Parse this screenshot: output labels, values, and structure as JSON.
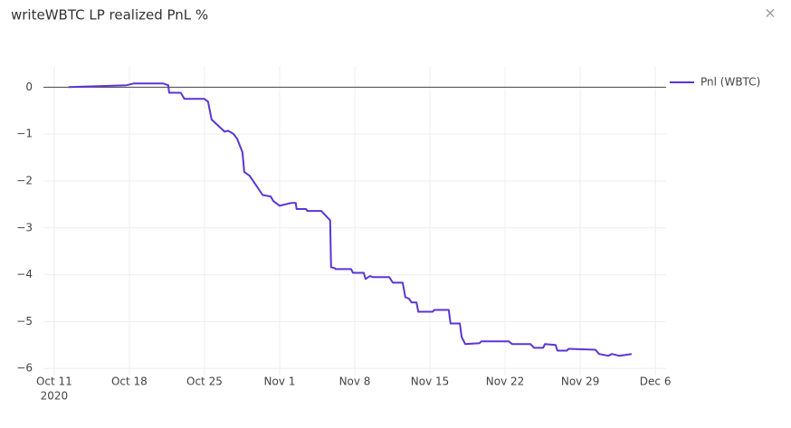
{
  "chart_data": {
    "type": "line",
    "title": "writeWBTC LP realized PnL %",
    "close_label": "×",
    "x": [
      "2020-10-12T08:00",
      "2020-10-17T18:00",
      "2020-10-18T10:00",
      "2020-10-21T03:00",
      "2020-10-21T15:00",
      "2020-10-21T17:00",
      "2020-10-22T19:00",
      "2020-10-23T03:00",
      "2020-10-25T00:00",
      "2020-10-25T08:00",
      "2020-10-25T16:00",
      "2020-10-26T21:00",
      "2020-10-27T05:00",
      "2020-10-27T17:00",
      "2020-10-28T01:00",
      "2020-10-28T13:00",
      "2020-10-28T17:00",
      "2020-10-29T05:00",
      "2020-10-30T10:00",
      "2020-10-31T04:00",
      "2020-10-31T10:00",
      "2020-11-01T00:00",
      "2020-11-02T02:00",
      "2020-11-02T12:00",
      "2020-11-02T14:00",
      "2020-11-03T11:00",
      "2020-11-03T14:00",
      "2020-11-04T21:00",
      "2020-11-05T11:00",
      "2020-11-05T17:00",
      "2020-11-05T19:00",
      "2020-11-06T03:00",
      "2020-11-06T05:00",
      "2020-11-07T16:00",
      "2020-11-07T20:00",
      "2020-11-08T20:00",
      "2020-11-09T00:00",
      "2020-11-09T10:00",
      "2020-11-09T16:00",
      "2020-11-11T05:00",
      "2020-11-11T13:00",
      "2020-11-12T11:00",
      "2020-11-12T17:00",
      "2020-11-13T01:00",
      "2020-11-13T07:00",
      "2020-11-13T18:00",
      "2020-11-13T22:00",
      "2020-11-15T06:00",
      "2020-11-15T10:00",
      "2020-11-16T18:00",
      "2020-11-16T22:00",
      "2020-11-17T19:00",
      "2020-11-17T23:00",
      "2020-11-18T07:00",
      "2020-11-19T15:00",
      "2020-11-19T19:00",
      "2020-11-22T08:00",
      "2020-11-22T16:00",
      "2020-11-24T09:00",
      "2020-11-24T17:00",
      "2020-11-25T13:00",
      "2020-11-25T17:00",
      "2020-11-26T17:00",
      "2020-11-26T21:00",
      "2020-11-27T18:00",
      "2020-11-27T22:00",
      "2020-11-30T10:00",
      "2020-11-30T18:00",
      "2020-12-01T15:00",
      "2020-12-01T23:00",
      "2020-12-02T15:00",
      "2020-12-03T19:00"
    ],
    "series": [
      {
        "name": "Pnl (WBTC)",
        "color": "#5b35d5",
        "values": [
          0,
          0.04,
          0.08,
          0.08,
          0.04,
          -0.12,
          -0.12,
          -0.25,
          -0.25,
          -0.31,
          -0.69,
          -0.95,
          -0.93,
          -1.0,
          -1.1,
          -1.39,
          -1.81,
          -1.89,
          -2.3,
          -2.33,
          -2.43,
          -2.53,
          -2.47,
          -2.47,
          -2.6,
          -2.6,
          -2.64,
          -2.64,
          -2.78,
          -2.84,
          -3.84,
          -3.86,
          -3.88,
          -3.88,
          -3.96,
          -3.96,
          -4.09,
          -4.03,
          -4.05,
          -4.05,
          -4.17,
          -4.17,
          -4.48,
          -4.51,
          -4.59,
          -4.59,
          -4.79,
          -4.79,
          -4.75,
          -4.75,
          -5.04,
          -5.04,
          -5.33,
          -5.48,
          -5.46,
          -5.42,
          -5.42,
          -5.48,
          -5.48,
          -5.56,
          -5.56,
          -5.48,
          -5.5,
          -5.62,
          -5.62,
          -5.58,
          -5.6,
          -5.69,
          -5.73,
          -5.69,
          -5.73,
          -5.69
        ]
      }
    ],
    "xlim": [
      "2020-10-10T00:00",
      "2020-12-07T00:00"
    ],
    "xticks": [
      {
        "value": "2020-10-11T00:00",
        "label": "Oct 11"
      },
      {
        "value": "2020-10-18T00:00",
        "label": "Oct 18"
      },
      {
        "value": "2020-10-25T00:00",
        "label": "Oct 25"
      },
      {
        "value": "2020-11-01T00:00",
        "label": "Nov 1"
      },
      {
        "value": "2020-11-08T00:00",
        "label": "Nov 8"
      },
      {
        "value": "2020-11-15T00:00",
        "label": "Nov 15"
      },
      {
        "value": "2020-11-22T00:00",
        "label": "Nov 22"
      },
      {
        "value": "2020-11-29T00:00",
        "label": "Nov 29"
      },
      {
        "value": "2020-12-06T00:00",
        "label": "Dec 6"
      }
    ],
    "x_year_label": "2020",
    "ylim": [
      -6.15,
      0.45
    ],
    "yticks": [
      0,
      {
        "value": -1,
        "label": "−1"
      },
      {
        "value": -2,
        "label": "−2"
      },
      {
        "value": -3,
        "label": "−3"
      },
      {
        "value": -4,
        "label": "−4"
      },
      {
        "value": -5,
        "label": "−5"
      },
      {
        "value": -6,
        "label": "−6"
      }
    ],
    "grid": true,
    "zero_line": true,
    "legend": "top-right"
  }
}
